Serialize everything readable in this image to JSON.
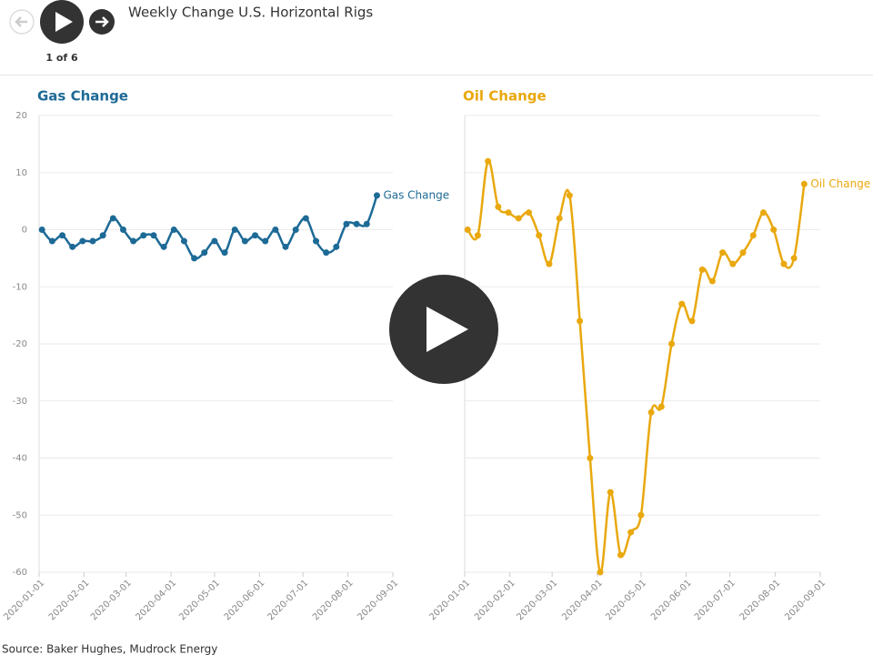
{
  "header": {
    "title": "Weekly Change U.S. Horizontal Rigs",
    "pager": "1 of 6"
  },
  "source": "Source: Baker Hughes, Mudrock Energy",
  "chart_data": [
    {
      "type": "line",
      "title": "Gas Change",
      "x": [
        "2020-01-03",
        "2020-01-10",
        "2020-01-17",
        "2020-01-24",
        "2020-01-31",
        "2020-02-07",
        "2020-02-14",
        "2020-02-21",
        "2020-02-28",
        "2020-03-06",
        "2020-03-13",
        "2020-03-20",
        "2020-03-27",
        "2020-04-03",
        "2020-04-10",
        "2020-04-17",
        "2020-04-24",
        "2020-05-01",
        "2020-05-08",
        "2020-05-15",
        "2020-05-22",
        "2020-05-29",
        "2020-06-05",
        "2020-06-12",
        "2020-06-19",
        "2020-06-26",
        "2020-07-03",
        "2020-07-10",
        "2020-07-17",
        "2020-07-24",
        "2020-07-31",
        "2020-08-07",
        "2020-08-14",
        "2020-08-21"
      ],
      "series": [
        {
          "name": "Gas Change",
          "color": "#1d6a96",
          "values": [
            0,
            -2,
            -1,
            -3,
            -2,
            -2,
            -1,
            2,
            0,
            -2,
            -1,
            -1,
            -3,
            0,
            -2,
            -5,
            -4,
            -2,
            -4,
            0,
            -2,
            -1,
            -2,
            0,
            -3,
            0,
            2,
            -2,
            -4,
            -3,
            1,
            1,
            1,
            6
          ]
        }
      ],
      "xlim": [
        "2020-01-01",
        "2020-09-01"
      ],
      "xticks": [
        "2020-01-01",
        "2020-02-01",
        "2020-03-01",
        "2020-04-01",
        "2020-05-01",
        "2020-06-01",
        "2020-07-01",
        "2020-08-01",
        "2020-09-01"
      ],
      "ylim": [
        -60,
        20
      ],
      "yticks": [
        -60,
        -50,
        -40,
        -30,
        -20,
        -10,
        0,
        10,
        20
      ],
      "show_ytick_labels": true,
      "grid": true
    },
    {
      "type": "line",
      "title": "Oil Change",
      "x": [
        "2020-01-03",
        "2020-01-10",
        "2020-01-17",
        "2020-01-24",
        "2020-01-31",
        "2020-02-07",
        "2020-02-14",
        "2020-02-21",
        "2020-02-28",
        "2020-03-06",
        "2020-03-13",
        "2020-03-20",
        "2020-03-27",
        "2020-04-03",
        "2020-04-10",
        "2020-04-17",
        "2020-04-24",
        "2020-05-01",
        "2020-05-08",
        "2020-05-15",
        "2020-05-22",
        "2020-05-29",
        "2020-06-05",
        "2020-06-12",
        "2020-06-19",
        "2020-06-26",
        "2020-07-03",
        "2020-07-10",
        "2020-07-17",
        "2020-07-24",
        "2020-07-31",
        "2020-08-07",
        "2020-08-14",
        "2020-08-21"
      ],
      "series": [
        {
          "name": "Oil Change",
          "color": "#e9a80e",
          "values": [
            0,
            -1,
            12,
            4,
            3,
            2,
            3,
            -1,
            -6,
            2,
            6,
            -16,
            -40,
            -60,
            -46,
            -57,
            -53,
            -50,
            -32,
            -31,
            -20,
            -13,
            -16,
            -7,
            -9,
            -4,
            -6,
            -4,
            -1,
            3,
            0,
            -6,
            -5,
            8
          ]
        }
      ],
      "xlim": [
        "2020-01-01",
        "2020-09-01"
      ],
      "xticks": [
        "2020-01-01",
        "2020-02-01",
        "2020-03-01",
        "2020-04-01",
        "2020-05-01",
        "2020-06-01",
        "2020-07-01",
        "2020-08-01",
        "2020-09-01"
      ],
      "ylim": [
        -60,
        20
      ],
      "yticks": [
        -60,
        -50,
        -40,
        -30,
        -20,
        -10,
        0,
        10,
        20
      ],
      "show_ytick_labels": false,
      "grid": true
    }
  ]
}
